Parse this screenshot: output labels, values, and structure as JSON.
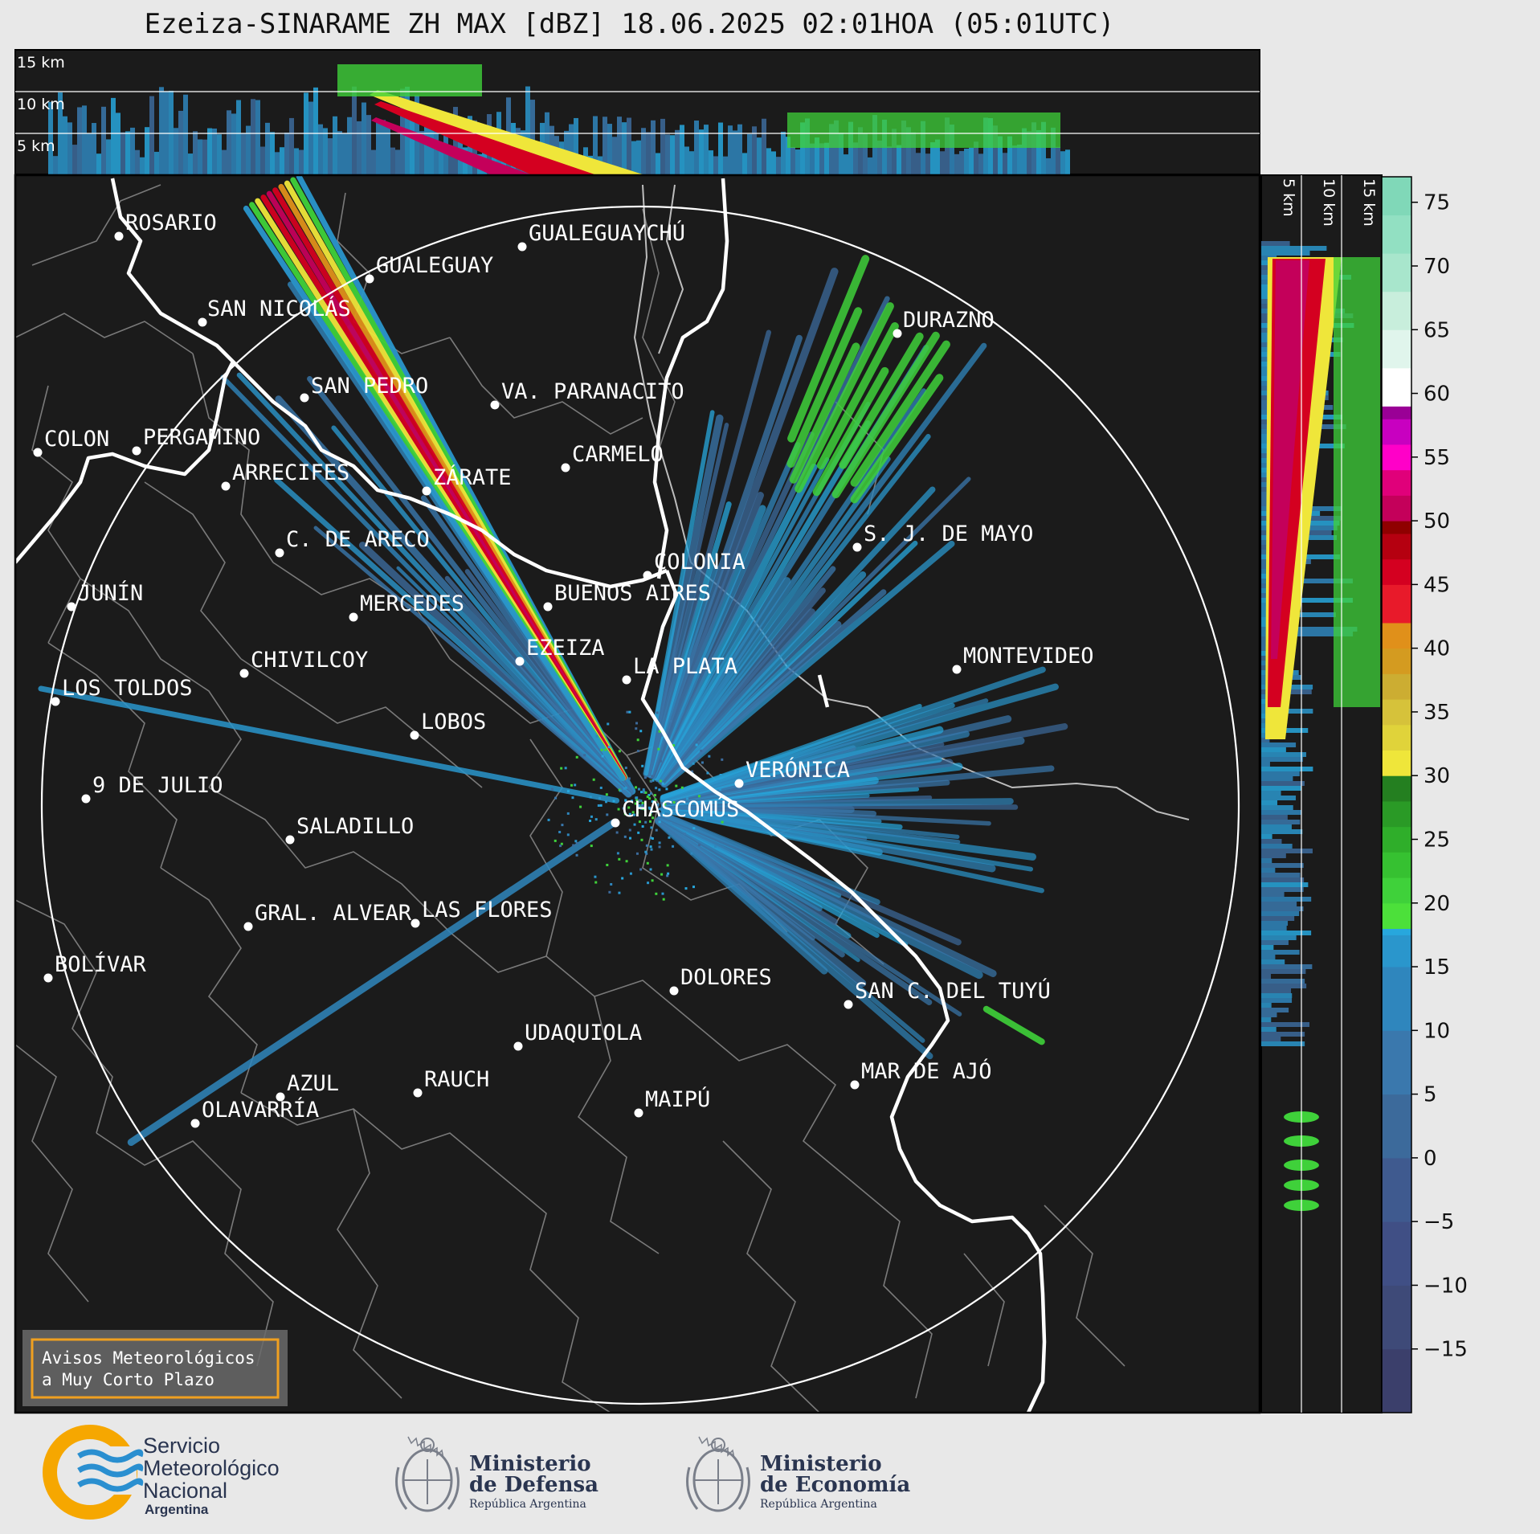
{
  "title": "Ezeiza-SINARAME ZH MAX [dBZ] 18.06.2025 02:01HOA (05:01UTC)",
  "top_panel": {
    "height_labels": [
      "15 km",
      "10 km",
      "5 km"
    ]
  },
  "side_panel": {
    "height_labels": [
      "5 km",
      "10 km",
      "15 km"
    ]
  },
  "colorbar": {
    "ticks": [
      "75",
      "70",
      "65",
      "60",
      "55",
      "50",
      "45",
      "40",
      "35",
      "30",
      "25",
      "20",
      "15",
      "10",
      "5",
      "0",
      "−5",
      "−10",
      "−15"
    ],
    "unit": "dBZ"
  },
  "radar": {
    "name": "EZEIZA",
    "range_ring": "240 km"
  },
  "cities": [
    {
      "name": "ROSARIO"
    },
    {
      "name": "GUALEGUAYCHÚ"
    },
    {
      "name": "GUALEGUAY"
    },
    {
      "name": "SAN NICOLÁS"
    },
    {
      "name": "DURAZNO"
    },
    {
      "name": "SAN PEDRO"
    },
    {
      "name": "VA. PARANACITO"
    },
    {
      "name": "COLON"
    },
    {
      "name": "PERGAMINO"
    },
    {
      "name": "CARMELO"
    },
    {
      "name": "ARRECIFES"
    },
    {
      "name": "ZÁRATE"
    },
    {
      "name": "C. DE ARECO"
    },
    {
      "name": "S. J. DE MAYO"
    },
    {
      "name": "COLONIA"
    },
    {
      "name": "JUNÍN"
    },
    {
      "name": "BUENOS AIRES"
    },
    {
      "name": "MERCEDES"
    },
    {
      "name": "EZEIZA"
    },
    {
      "name": "MONTEVIDEO"
    },
    {
      "name": "CHIVILCOY"
    },
    {
      "name": "LA PLATA"
    },
    {
      "name": "LOS TOLDOS"
    },
    {
      "name": "LOBOS"
    },
    {
      "name": "VERÓNICA"
    },
    {
      "name": "9 DE JULIO"
    },
    {
      "name": "CHASCOMÚS"
    },
    {
      "name": "SALADILLO"
    },
    {
      "name": "GRAL. ALVEAR"
    },
    {
      "name": "LAS FLORES"
    },
    {
      "name": "BOLÍVAR"
    },
    {
      "name": "DOLORES"
    },
    {
      "name": "SAN C. DEL TUYÚ"
    },
    {
      "name": "UDAQUIOLA"
    },
    {
      "name": "MAR DE AJÓ"
    },
    {
      "name": "AZUL"
    },
    {
      "name": "RAUCH"
    },
    {
      "name": "OLAVARRÍA"
    },
    {
      "name": "MAIPÚ"
    }
  ],
  "warning_box": {
    "line1": "Avisos Meteorológicos",
    "line2": "a Muy Corto Plazo"
  },
  "logos": {
    "smn": {
      "line1": "Servicio",
      "line2": "Meteorológico",
      "line3": "Nacional",
      "line4": "Argentina"
    },
    "defensa": {
      "line1": "Ministerio",
      "line2": "de Defensa",
      "line3": "República Argentina"
    },
    "economia": {
      "line1": "Ministerio",
      "line2": "de Economía",
      "line3": "República Argentina"
    }
  },
  "colors": {
    "background": "#1b1b1b",
    "ring": "#ffffff",
    "coast": "#ffffff",
    "borders": "#7a7a7a",
    "warning_border": "#f0a020",
    "smn_blue": "#2a8fd0",
    "smn_orange": "#f6a700"
  }
}
